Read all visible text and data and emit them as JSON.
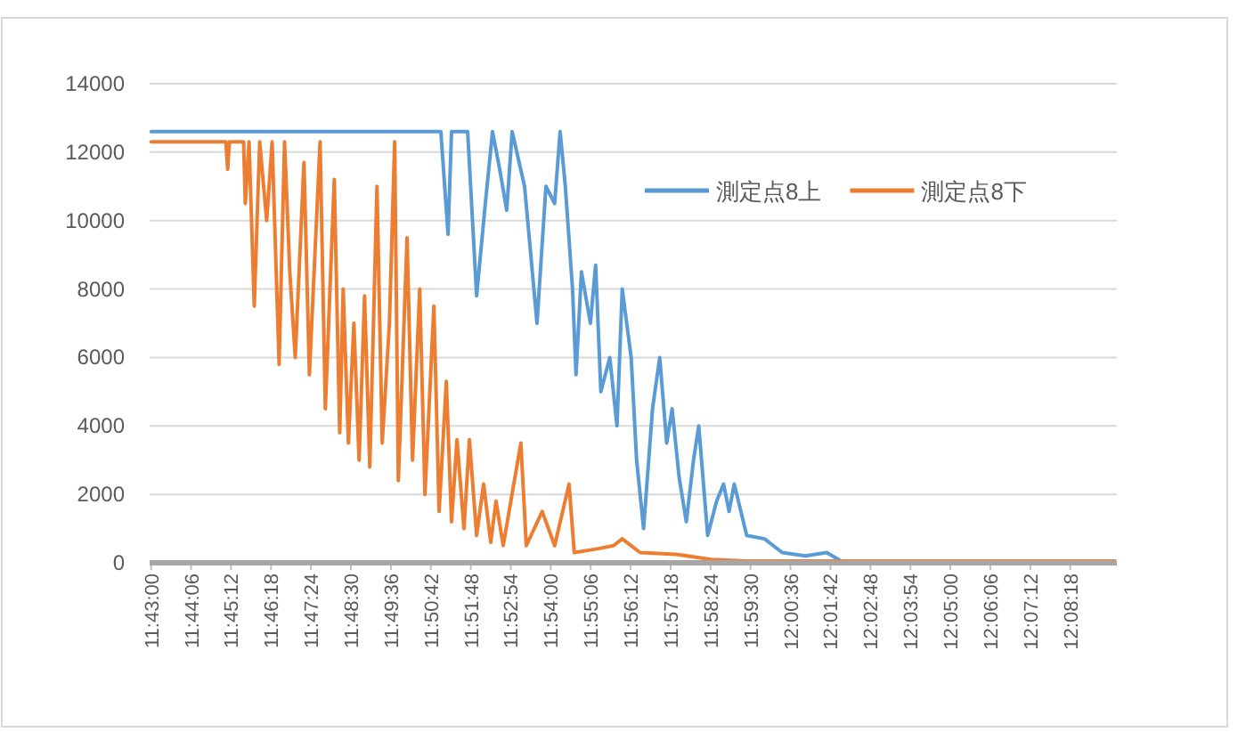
{
  "chart_data": {
    "type": "line",
    "ylim": [
      0,
      14000
    ],
    "yticks": [
      0,
      2000,
      4000,
      6000,
      8000,
      10000,
      12000,
      14000
    ],
    "xlim": [
      11.716,
      12.1597
    ],
    "xticks": [
      {
        "value": 11.716667,
        "label": "11:43:00"
      },
      {
        "value": 11.735,
        "label": "11:44:06"
      },
      {
        "value": 11.753333,
        "label": "11:45:12"
      },
      {
        "value": 11.771667,
        "label": "11:46:18"
      },
      {
        "value": 11.79,
        "label": "11:47:24"
      },
      {
        "value": 11.808333,
        "label": "11:48:30"
      },
      {
        "value": 11.826667,
        "label": "11:49:36"
      },
      {
        "value": 11.845,
        "label": "11:50:42"
      },
      {
        "value": 11.863333,
        "label": "11:51:48"
      },
      {
        "value": 11.881667,
        "label": "11:52:54"
      },
      {
        "value": 11.9,
        "label": "11:54:00"
      },
      {
        "value": 11.918333,
        "label": "11:55:06"
      },
      {
        "value": 11.936667,
        "label": "11:56:12"
      },
      {
        "value": 11.955,
        "label": "11:57:18"
      },
      {
        "value": 11.973333,
        "label": "11:58:24"
      },
      {
        "value": 11.991667,
        "label": "11:59:30"
      },
      {
        "value": 12.01,
        "label": "12:00:36"
      },
      {
        "value": 12.028333,
        "label": "12:01:42"
      },
      {
        "value": 12.046667,
        "label": "12:02:48"
      },
      {
        "value": 12.065,
        "label": "12:03:54"
      },
      {
        "value": 12.083333,
        "label": "12:05:00"
      },
      {
        "value": 12.101667,
        "label": "12:06:06"
      },
      {
        "value": 12.12,
        "label": "12:07:12"
      },
      {
        "value": 12.138333,
        "label": "12:08:18"
      }
    ],
    "grid": "y",
    "legend": "top right",
    "marker": "none",
    "line_style": "solid",
    "series": [
      {
        "name": "測定点8上",
        "color": "#5b9bd5",
        "x": [
          11.7167,
          11.8496,
          11.8529,
          11.8545,
          11.8619,
          11.866,
          11.87,
          11.8733,
          11.8766,
          11.8798,
          11.8823,
          11.888,
          11.8937,
          11.8978,
          11.9018,
          11.9043,
          11.9067,
          11.91,
          11.9116,
          11.9141,
          11.9182,
          11.9206,
          11.923,
          11.9271,
          11.9304,
          11.9328,
          11.9369,
          11.9394,
          11.9426,
          11.9467,
          11.95,
          11.9532,
          11.9557,
          11.9589,
          11.9622,
          11.9655,
          11.9679,
          11.972,
          11.9761,
          11.9793,
          11.9818,
          11.9842,
          11.9899,
          11.9981,
          12.0062,
          12.0168,
          12.0266,
          12.0332,
          12.1588
        ],
        "values": [
          12600,
          12600,
          9600,
          12600,
          12600,
          7800,
          10500,
          12600,
          11500,
          10300,
          12600,
          11000,
          7000,
          11000,
          10500,
          12600,
          11000,
          8000,
          5500,
          8500,
          7000,
          8700,
          5000,
          6000,
          4000,
          8000,
          6000,
          3000,
          1000,
          4500,
          6000,
          3500,
          4500,
          2500,
          1200,
          3000,
          4000,
          800,
          1800,
          2300,
          1500,
          2300,
          800,
          700,
          300,
          200,
          300,
          50,
          0
        ]
      },
      {
        "name": "測定点8下",
        "color": "#ed7d31",
        "x": [
          11.7167,
          11.751,
          11.7518,
          11.7526,
          11.7591,
          11.7599,
          11.7616,
          11.764,
          11.7665,
          11.7697,
          11.7722,
          11.7754,
          11.7779,
          11.7803,
          11.7828,
          11.7868,
          11.7893,
          11.7942,
          11.7966,
          11.8007,
          11.8032,
          11.8048,
          11.8072,
          11.8097,
          11.8121,
          11.8146,
          11.817,
          11.8203,
          11.8227,
          11.826,
          11.8284,
          11.8301,
          11.8341,
          11.8366,
          11.8399,
          11.8423,
          11.8464,
          11.8488,
          11.8521,
          11.8545,
          11.857,
          11.8602,
          11.8627,
          11.866,
          11.8692,
          11.8725,
          11.8749,
          11.8782,
          11.8863,
          11.8888,
          11.8961,
          11.9018,
          11.9084,
          11.9108,
          11.9206,
          11.9288,
          11.9328,
          11.941,
          11.9573,
          11.9736,
          11.9899,
          12.1588
        ],
        "values": [
          12300,
          12300,
          11500,
          12300,
          12300,
          10500,
          12300,
          7500,
          12300,
          10000,
          12300,
          5800,
          12300,
          8500,
          6000,
          11700,
          5500,
          12300,
          4500,
          11200,
          3800,
          8000,
          3500,
          7000,
          3000,
          7800,
          2800,
          11000,
          3500,
          7000,
          12300,
          2400,
          9500,
          3000,
          8000,
          2000,
          7500,
          1500,
          5300,
          1200,
          3600,
          1000,
          3600,
          800,
          2300,
          600,
          1800,
          500,
          3500,
          500,
          1500,
          500,
          2300,
          300,
          400,
          500,
          700,
          300,
          250,
          100,
          50,
          50
        ]
      }
    ]
  }
}
